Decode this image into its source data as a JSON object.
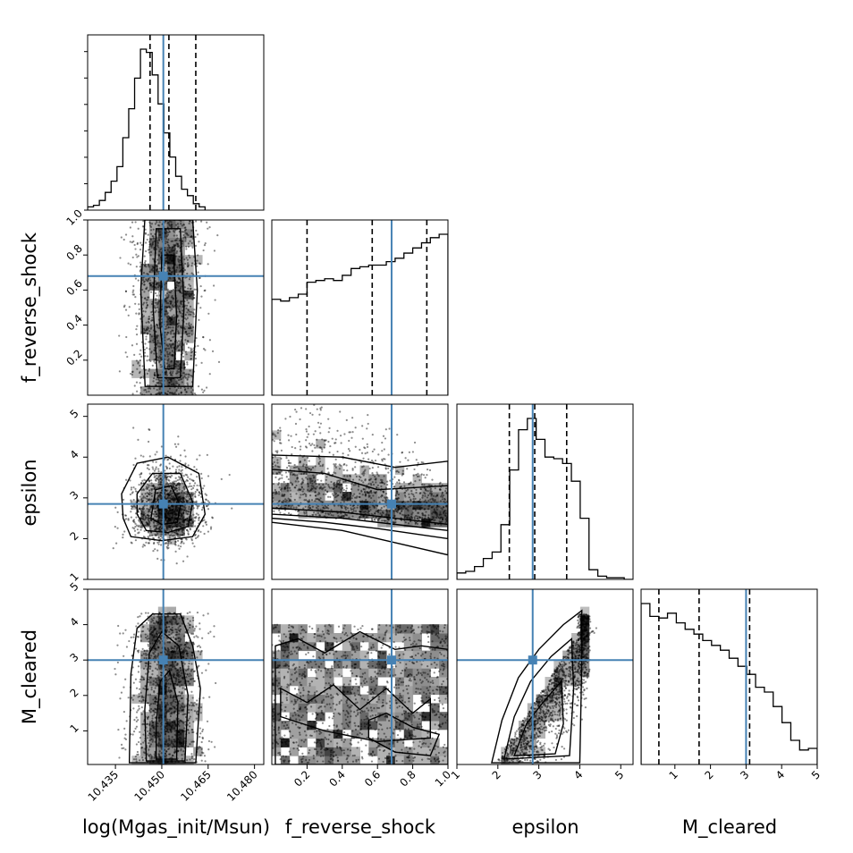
{
  "chart_data": {
    "type": "corner",
    "parameters": [
      {
        "key": "logm",
        "label": "log(Mgas_init/Msun)",
        "range": [
          10.426,
          10.483
        ],
        "ticks": [
          10.435,
          10.45,
          10.465,
          10.48
        ],
        "tick_labels": [
          "10.435",
          "10.450",
          "10.465",
          "10.480"
        ],
        "truth": 10.4505,
        "quantiles": [
          10.4462,
          10.4523,
          10.461
        ]
      },
      {
        "key": "frs",
        "label": "f_reverse_shock",
        "range": [
          0.0,
          1.0
        ],
        "ticks": [
          0.2,
          0.4,
          0.6,
          0.8,
          1.0
        ],
        "tick_labels": [
          "0.2",
          "0.4",
          "0.6",
          "0.8",
          "1.0"
        ],
        "truth": 0.68,
        "quantiles": [
          0.2,
          0.57,
          0.88
        ]
      },
      {
        "key": "eps",
        "label": "epsilon",
        "range": [
          1.0,
          5.3
        ],
        "ticks": [
          1,
          2,
          3,
          4,
          5
        ],
        "tick_labels": [
          "1",
          "2",
          "3",
          "4",
          "5"
        ],
        "truth": 2.85,
        "quantiles": [
          2.28,
          2.9,
          3.68
        ]
      },
      {
        "key": "mcl",
        "label": "M_cleared",
        "range": [
          0.05,
          5.0
        ],
        "ticks": [
          1,
          2,
          3,
          4,
          5
        ],
        "tick_labels": [
          "1",
          "2",
          "3",
          "4",
          "5"
        ],
        "truth": 3.0,
        "quantiles": [
          0.55,
          1.68,
          3.1
        ]
      }
    ],
    "histograms": [
      {
        "param": "logm",
        "edges_start": 10.426,
        "bin_width": 0.0019,
        "counts": [
          2,
          3,
          6,
          11,
          18,
          27,
          45,
          63,
          82,
          100,
          98,
          84,
          66,
          48,
          33,
          21,
          13,
          9,
          4,
          2
        ]
      },
      {
        "param": "frs",
        "edges_start": 0.0,
        "bin_width": 0.05,
        "counts": [
          56,
          55,
          57,
          59,
          66,
          67,
          68,
          67,
          70,
          74,
          75,
          76,
          76,
          78,
          80,
          83,
          86,
          89,
          92,
          94
        ]
      },
      {
        "param": "eps",
        "edges_start": 1.0,
        "bin_width": 0.215,
        "counts": [
          4,
          5,
          8,
          13,
          17,
          34,
          68,
          93,
          100,
          87,
          76,
          75,
          72,
          61,
          38,
          6,
          2,
          1,
          1,
          0
        ]
      },
      {
        "param": "mcl",
        "edges_start": 0.05,
        "bin_width": 0.2475,
        "counts": [
          100,
          92,
          91,
          94,
          88,
          84,
          81,
          77,
          74,
          71,
          66,
          61,
          56,
          48,
          45,
          36,
          26,
          15,
          9,
          10
        ]
      }
    ],
    "xlabel_note": "",
    "grid": false,
    "legend": "none"
  }
}
